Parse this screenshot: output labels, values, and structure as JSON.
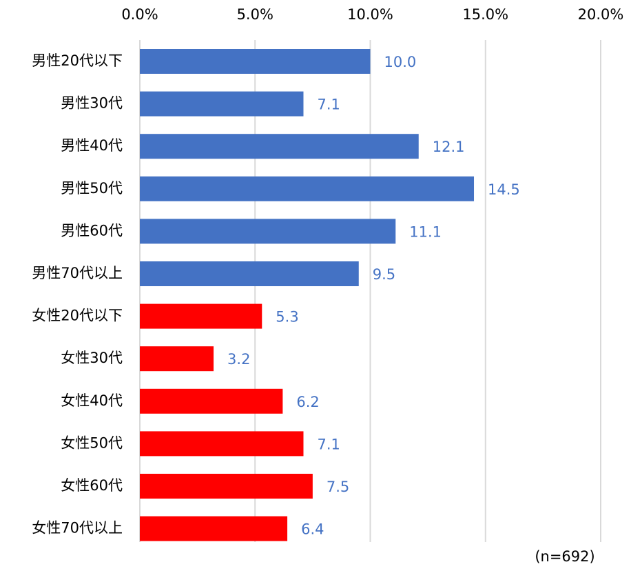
{
  "chart_data": {
    "type": "barh",
    "categories": [
      "男性20代以下",
      "男性30代",
      "男性40代",
      "男性50代",
      "男性60代",
      "男性70代以上",
      "女性20代以下",
      "女性30代",
      "女性40代",
      "女性50代",
      "女性60代",
      "女性70代以上"
    ],
    "values": [
      10.0,
      7.1,
      12.1,
      14.5,
      11.1,
      9.5,
      5.3,
      3.2,
      6.2,
      7.1,
      7.5,
      6.4
    ],
    "value_labels": [
      "10.0",
      "7.1",
      "12.1",
      "14.5",
      "11.1",
      "9.5",
      "5.3",
      "3.2",
      "6.2",
      "7.1",
      "7.5",
      "6.4"
    ],
    "colors": [
      "#4472c4",
      "#4472c4",
      "#4472c4",
      "#4472c4",
      "#4472c4",
      "#4472c4",
      "#ff0000",
      "#ff0000",
      "#ff0000",
      "#ff0000",
      "#ff0000",
      "#ff0000"
    ],
    "xlim": [
      0,
      20
    ],
    "xticks": [
      {
        "value": 0,
        "label": "0.0%"
      },
      {
        "value": 5,
        "label": "5.0%"
      },
      {
        "value": 10,
        "label": "10.0%"
      },
      {
        "value": 15,
        "label": "15.0%"
      },
      {
        "value": 20,
        "label": "20.0%"
      }
    ],
    "grid": true,
    "annotation": "(n=692)"
  }
}
